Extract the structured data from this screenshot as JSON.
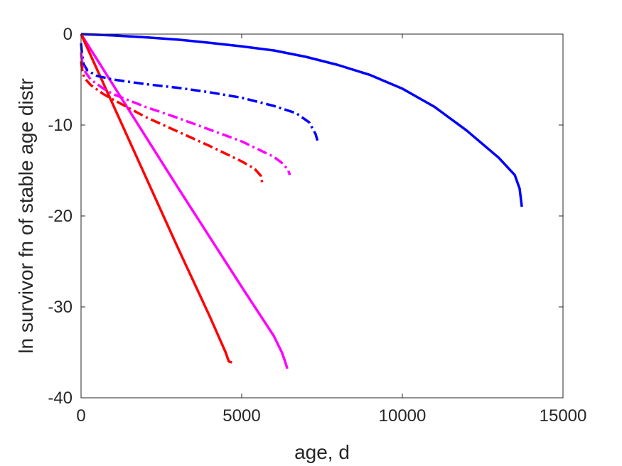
{
  "chart_data": {
    "type": "line",
    "title": "",
    "xlabel": "age, d",
    "ylabel": "ln survivor fn of stable age distr",
    "xlim": [
      0,
      15000
    ],
    "ylim": [
      -40,
      0
    ],
    "x_ticks": [
      0,
      5000,
      10000,
      15000
    ],
    "y_ticks": [
      0,
      -10,
      -20,
      -30,
      -40
    ],
    "x_tick_labels": [
      "0",
      "5000",
      "10000",
      "15000"
    ],
    "y_tick_labels": [
      "0",
      "-10",
      "-20",
      "-30",
      "-40"
    ],
    "grid": false,
    "legend": "none",
    "series": [
      {
        "color": "#0000ff",
        "style": "solid",
        "points": [
          [
            0,
            0
          ],
          [
            1000,
            -0.15
          ],
          [
            2000,
            -0.35
          ],
          [
            3000,
            -0.6
          ],
          [
            4000,
            -0.95
          ],
          [
            5000,
            -1.35
          ],
          [
            6000,
            -1.8
          ],
          [
            7000,
            -2.5
          ],
          [
            8000,
            -3.4
          ],
          [
            9000,
            -4.5
          ],
          [
            10000,
            -6
          ],
          [
            11000,
            -8
          ],
          [
            12000,
            -10.6
          ],
          [
            13000,
            -13.6
          ],
          [
            13500,
            -15.5
          ],
          [
            13650,
            -17
          ],
          [
            13720,
            -19
          ]
        ]
      },
      {
        "color": "#ff00ff",
        "style": "solid",
        "points": [
          [
            0,
            0
          ],
          [
            500,
            -2.8
          ],
          [
            1000,
            -5.6
          ],
          [
            2000,
            -11.2
          ],
          [
            3000,
            -16.8
          ],
          [
            4000,
            -22.3
          ],
          [
            5000,
            -27.8
          ],
          [
            6000,
            -33.2
          ],
          [
            6250,
            -35
          ],
          [
            6350,
            -36
          ],
          [
            6420,
            -36.8
          ]
        ]
      },
      {
        "color": "#ff0000",
        "style": "solid",
        "points": [
          [
            0,
            0
          ],
          [
            500,
            -3.9
          ],
          [
            1000,
            -7.8
          ],
          [
            2000,
            -15.6
          ],
          [
            3000,
            -23.4
          ],
          [
            4000,
            -31
          ],
          [
            4500,
            -35
          ],
          [
            4600,
            -36
          ],
          [
            4700,
            -36.1
          ]
        ]
      },
      {
        "color": "#0000ff",
        "style": "dashdot",
        "points": [
          [
            0,
            -1
          ],
          [
            30,
            -2.2
          ],
          [
            80,
            -3.3
          ],
          [
            200,
            -4
          ],
          [
            500,
            -4.6
          ],
          [
            1000,
            -5
          ],
          [
            2000,
            -5.5
          ],
          [
            3000,
            -5.9
          ],
          [
            4000,
            -6.4
          ],
          [
            5000,
            -7
          ],
          [
            6000,
            -7.9
          ],
          [
            6700,
            -8.7
          ],
          [
            7100,
            -9.7
          ],
          [
            7300,
            -11
          ],
          [
            7380,
            -12
          ]
        ]
      },
      {
        "color": "#ff00ff",
        "style": "dashdot",
        "points": [
          [
            0,
            -2
          ],
          [
            40,
            -3.2
          ],
          [
            100,
            -4
          ],
          [
            300,
            -5
          ],
          [
            700,
            -6
          ],
          [
            1000,
            -6.6
          ],
          [
            2000,
            -8
          ],
          [
            3000,
            -9.2
          ],
          [
            4000,
            -10.5
          ],
          [
            5000,
            -11.8
          ],
          [
            6000,
            -13.5
          ],
          [
            6300,
            -14.3
          ],
          [
            6450,
            -15
          ],
          [
            6500,
            -15.5
          ]
        ]
      },
      {
        "color": "#ff0000",
        "style": "dashdot",
        "points": [
          [
            0,
            -3
          ],
          [
            40,
            -4
          ],
          [
            100,
            -4.8
          ],
          [
            300,
            -5.6
          ],
          [
            700,
            -6.6
          ],
          [
            1000,
            -7.2
          ],
          [
            2000,
            -9.1
          ],
          [
            3000,
            -10.7
          ],
          [
            4000,
            -12.3
          ],
          [
            5000,
            -14
          ],
          [
            5400,
            -14.8
          ],
          [
            5600,
            -15.6
          ],
          [
            5650,
            -16.6
          ]
        ]
      }
    ]
  }
}
